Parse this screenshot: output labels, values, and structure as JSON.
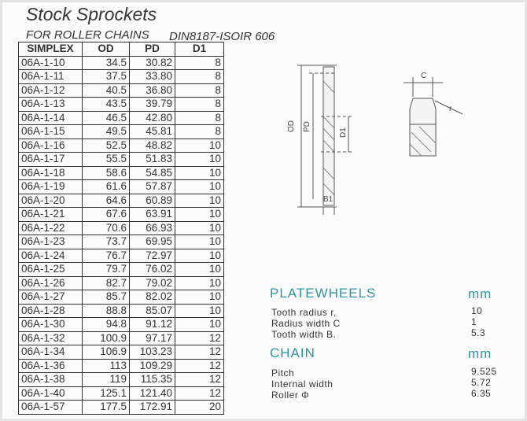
{
  "header": {
    "title": "Stock Sprockets",
    "subtitle": "FOR ROLLER CHAINS",
    "standard": "DIN8187-ISOIR 606"
  },
  "table": {
    "columns": [
      "SIMPLEX",
      "OD",
      "PD",
      "D1"
    ],
    "rows": [
      [
        "06A-1-10",
        "34.5",
        "30.82",
        "8"
      ],
      [
        "06A-1-11",
        "37.5",
        "33.80",
        "8"
      ],
      [
        "06A-1-12",
        "40.5",
        "36.80",
        "8"
      ],
      [
        "06A-1-13",
        "43.5",
        "39.79",
        "8"
      ],
      [
        "06A-1-14",
        "46.5",
        "42.80",
        "8"
      ],
      [
        "06A-1-15",
        "49.5",
        "45.81",
        "8"
      ],
      [
        "06A-1-16",
        "52.5",
        "48.82",
        "10"
      ],
      [
        "06A-1-17",
        "55.5",
        "51.83",
        "10"
      ],
      [
        "06A-1-18",
        "58.6",
        "54.85",
        "10"
      ],
      [
        "06A-1-19",
        "61.6",
        "57.87",
        "10"
      ],
      [
        "06A-1-20",
        "64.6",
        "60.89",
        "10"
      ],
      [
        "06A-1-21",
        "67.6",
        "63.91",
        "10"
      ],
      [
        "06A-1-22",
        "70.6",
        "66.93",
        "10"
      ],
      [
        "06A-1-23",
        "73.7",
        "69.95",
        "10"
      ],
      [
        "06A-1-24",
        "76.7",
        "72.97",
        "10"
      ],
      [
        "06A-1-25",
        "79.7",
        "76.02",
        "10"
      ],
      [
        "06A-1-26",
        "82.7",
        "79.02",
        "10"
      ],
      [
        "06A-1-27",
        "85.7",
        "82.02",
        "10"
      ],
      [
        "06A-1-28",
        "88.8",
        "85.07",
        "10"
      ],
      [
        "06A-1-30",
        "94.8",
        "91.12",
        "10"
      ],
      [
        "06A-1-32",
        "100.9",
        "97.17",
        "12"
      ],
      [
        "06A-1-34",
        "106.9",
        "103.23",
        "12"
      ],
      [
        "06A-1-36",
        "113",
        "109.29",
        "12"
      ],
      [
        "06A-1-38",
        "119",
        "115.35",
        "12"
      ],
      [
        "06A-1-40",
        "125.1",
        "121.40",
        "12"
      ],
      [
        "06A-1-57",
        "177.5",
        "172.91",
        "20"
      ]
    ]
  },
  "diagram": {
    "od": "OD",
    "pd": "PD",
    "d1": "D1",
    "b1": "B1",
    "c": "C",
    "r": "r"
  },
  "specs": [
    {
      "title": "PLATEWHEELS",
      "unit": "mm",
      "rows": [
        [
          "Tooth radius r,",
          "10"
        ],
        [
          "Radius width C",
          "1"
        ],
        [
          "Tooth width B.",
          "5.3"
        ]
      ]
    },
    {
      "title": "CHAIN",
      "unit": "mm",
      "rows": [
        [
          "Pitch",
          "9.525"
        ],
        [
          "Internal width",
          "5.72"
        ],
        [
          "Roller Φ",
          "6.35"
        ]
      ]
    }
  ]
}
